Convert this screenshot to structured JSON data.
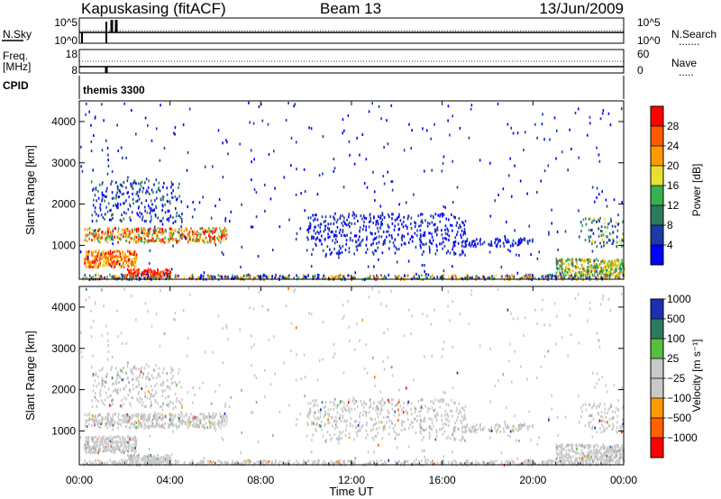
{
  "header": {
    "station": "Kapuskasing (fitACF)",
    "beam": "Beam 13",
    "date": "13/Jun/2009"
  },
  "nsky_panel": {
    "left_label": "N.Sky",
    "left_ticks": [
      "10^5",
      "10^0"
    ],
    "right_ticks": [
      "10^5",
      "10^0"
    ],
    "right_label": "N.Search",
    "right_key": "......."
  },
  "freq_panel": {
    "left_label_1": "Freq.",
    "left_label_2": "[MHz]",
    "left_ticks": [
      "18",
      "8"
    ],
    "right_ticks": [
      "60",
      "0"
    ],
    "right_label": "Nave",
    "right_key": "....."
  },
  "cpid": {
    "label": "CPID",
    "mode": "themis 3300"
  },
  "axes": {
    "xlabel": "Time UT",
    "x_ticks": [
      "00:00",
      "04:00",
      "08:00",
      "12:00",
      "16:00",
      "20:00",
      "00:00"
    ],
    "ylabel": "Slant Range [km]",
    "y_ticks": [
      "1000",
      "2000",
      "3000",
      "4000"
    ]
  },
  "colorbars": {
    "power": {
      "label": "Power [dB]",
      "ticks": [
        "4",
        "8",
        "12",
        "16",
        "20",
        "24",
        "28"
      ],
      "colors": [
        "#0000ff",
        "#1c3aa8",
        "#2e7a5c",
        "#38b050",
        "#e8e030",
        "#ff9a00",
        "#ff5a00",
        "#ff0000"
      ]
    },
    "velocity": {
      "label": "Velocity [m s⁻¹]",
      "ticks": [
        "1000",
        "500",
        "100",
        "25",
        "−25",
        "−100",
        "−500",
        "−1000"
      ],
      "colors": [
        "#1c2fb0",
        "#2e7a5c",
        "#55c040",
        "#c8c8c8",
        "#c8c8c8",
        "#ff9a00",
        "#ff6000",
        "#ff0000"
      ]
    }
  },
  "chart_data": [
    {
      "type": "heatmap",
      "title": "",
      "xlabel": "Time UT",
      "ylabel": "Slant Range [km]",
      "xlim": [
        "00:00",
        "24:00"
      ],
      "ylim": [
        180,
        4500
      ],
      "colorbar": "Power [dB]",
      "clim": [
        0,
        30
      ]
    },
    {
      "type": "heatmap",
      "title": "",
      "xlabel": "Time UT",
      "ylabel": "Slant Range [km]",
      "xlim": [
        "00:00",
        "24:00"
      ],
      "ylim": [
        180,
        4500
      ],
      "colorbar": "Velocity [m s⁻¹]",
      "clim": [
        -1000,
        1000
      ]
    }
  ]
}
